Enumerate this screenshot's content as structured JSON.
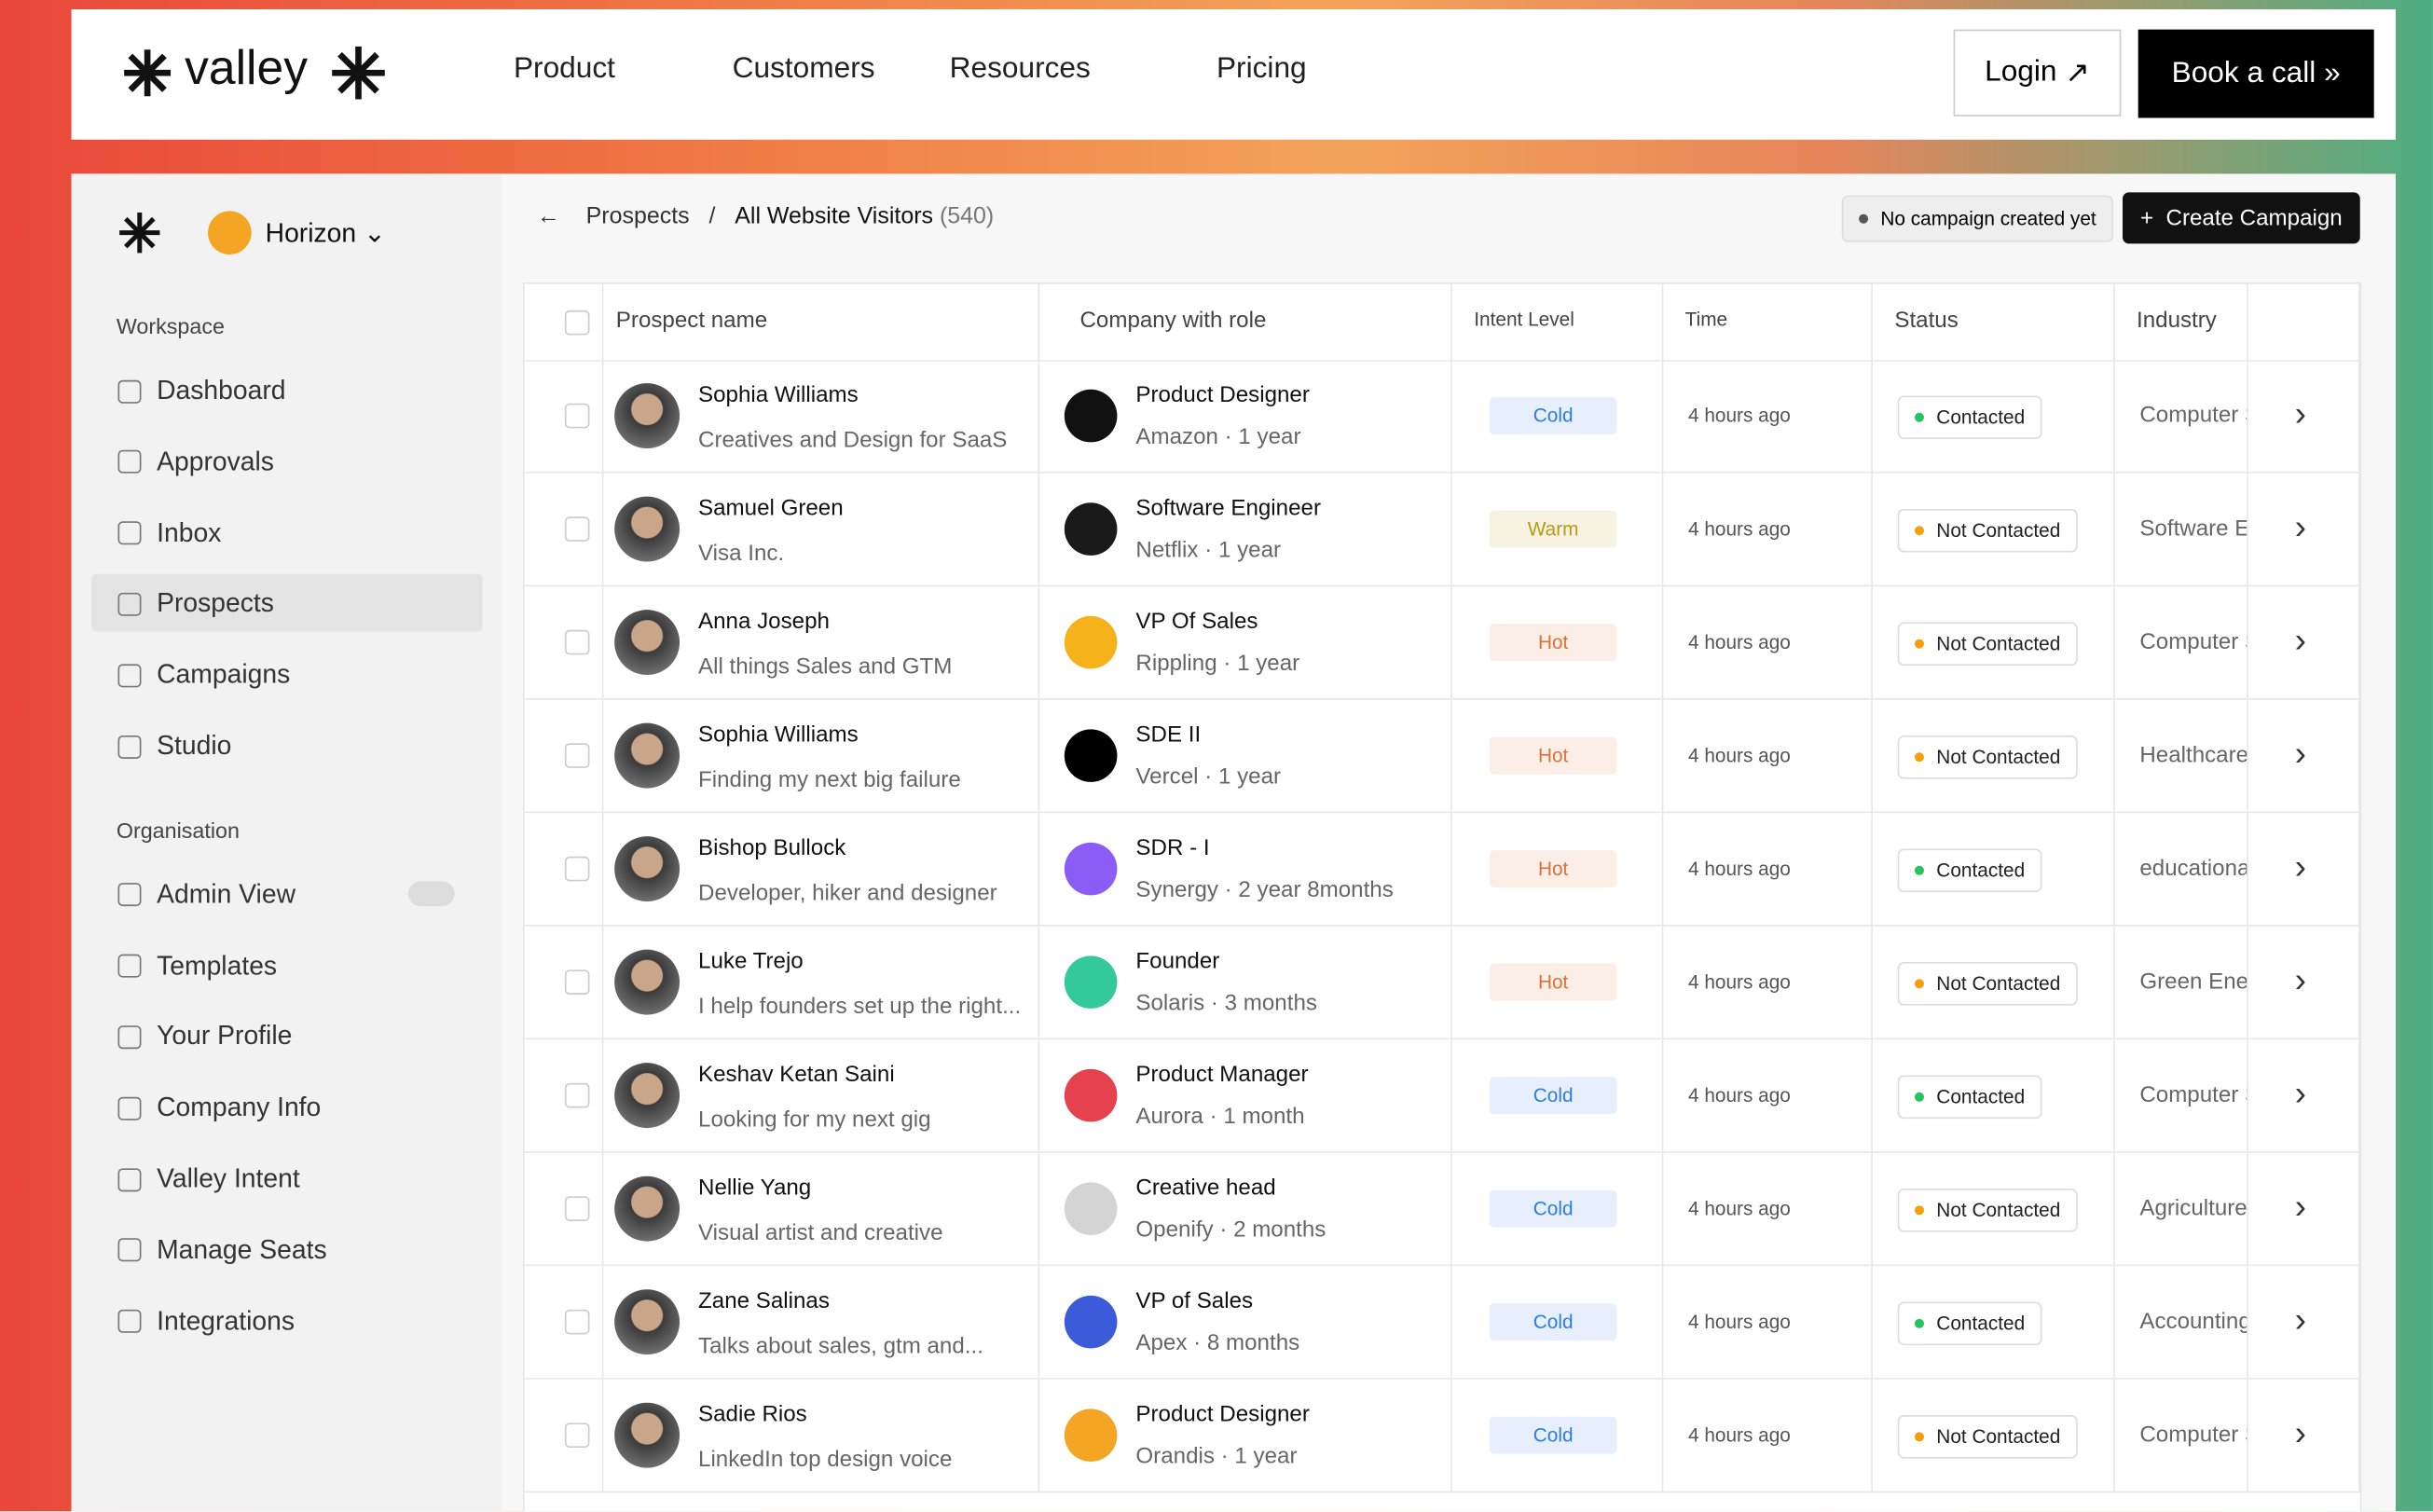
{
  "nav": {
    "logo": "valley",
    "links": [
      "Product",
      "Customers",
      "Resources",
      "Pricing"
    ],
    "login": "Login",
    "cta": "Book a call"
  },
  "sidebar": {
    "workspace": "Horizon",
    "sections": [
      {
        "title": "Workspace",
        "items": [
          "Dashboard",
          "Approvals",
          "Inbox",
          "Prospects",
          "Campaigns",
          "Studio"
        ]
      },
      {
        "title": "Organisation",
        "items": [
          "Admin View",
          "Templates",
          "Your Profile",
          "Company Info",
          "Valley Intent",
          "Manage Seats",
          "Integrations"
        ]
      }
    ]
  },
  "header": {
    "crumb": "Prospects",
    "page": "All Website Visitors",
    "count": "(540)",
    "notice": "No campaign created yet",
    "button": "Create Campaign"
  },
  "table": {
    "columns": [
      "Prospect name",
      "Company with role",
      "Intent Level",
      "Time",
      "Status",
      "Industry"
    ],
    "rows": [
      {
        "name": "Sophia Williams",
        "headline": "Creatives and Design for SaaS",
        "role": "Product Designer",
        "company": "Amazon",
        "tenure": "1 year",
        "intent": "Cold",
        "intent_color": "#2f7de1",
        "time": "4 hours ago",
        "status": "Contacted",
        "status_color": "#22c55e",
        "industry": "Computer Software",
        "logo_color": "#111111"
      },
      {
        "name": "Samuel Green",
        "headline": "Visa Inc.",
        "role": "Software Engineer",
        "company": "Netflix",
        "tenure": "1 year",
        "intent": "Warm",
        "intent_color": "#b99a12",
        "time": "4 hours ago",
        "status": "Not Contacted",
        "status_color": "#f59e0b",
        "industry": "Software Engineering",
        "logo_color": "#1a1a1a"
      },
      {
        "name": "Anna Joseph",
        "headline": "All things Sales and GTM",
        "role": "VP Of Sales",
        "company": "Rippling",
        "tenure": "1 year",
        "intent": "Hot",
        "intent_color": "#d9733a",
        "time": "4 hours ago",
        "status": "Not Contacted",
        "status_color": "#f59e0b",
        "industry": "Computer Software",
        "logo_color": "#f6b21a"
      },
      {
        "name": "Sophia Williams",
        "headline": "Finding my next big failure",
        "role": "SDE II",
        "company": "Vercel",
        "tenure": "1 year",
        "intent": "Hot",
        "intent_color": "#d9733a",
        "time": "4 hours ago",
        "status": "Not Contacted",
        "status_color": "#f59e0b",
        "industry": "Healthcare",
        "logo_color": "#000000"
      },
      {
        "name": "Bishop Bullock",
        "headline": "Developer, hiker and designer",
        "role": "SDR - I",
        "company": "Synergy",
        "tenure": "2 year 8months",
        "intent": "Hot",
        "intent_color": "#d9733a",
        "time": "4 hours ago",
        "status": "Contacted",
        "status_color": "#22c55e",
        "industry": "educational",
        "logo_color": "#8b5cf6"
      },
      {
        "name": "Luke Trejo",
        "headline": "I help founders set up the right...",
        "role": "Founder",
        "company": "Solaris",
        "tenure": "3 months",
        "intent": "Hot",
        "intent_color": "#d9733a",
        "time": "4 hours ago",
        "status": "Not Contacted",
        "status_color": "#f59e0b",
        "industry": "Green Energy",
        "logo_color": "#34c99a"
      },
      {
        "name": "Keshav Ketan Saini",
        "headline": "Looking for my next gig",
        "role": "Product Manager",
        "company": "Aurora",
        "tenure": "1 month",
        "intent": "Cold",
        "intent_color": "#2f7de1",
        "time": "4 hours ago",
        "status": "Contacted",
        "status_color": "#22c55e",
        "industry": "Computer Software",
        "logo_color": "#e5414f"
      },
      {
        "name": "Nellie Yang",
        "headline": "Visual artist and creative",
        "role": "Creative head",
        "company": "Openify",
        "tenure": "2 months",
        "intent": "Cold",
        "intent_color": "#2f7de1",
        "time": "4 hours ago",
        "status": "Not Contacted",
        "status_color": "#f59e0b",
        "industry": "Agriculture",
        "logo_color": "#d4d4d4"
      },
      {
        "name": "Zane Salinas",
        "headline": "Talks about sales, gtm and...",
        "role": "VP of Sales",
        "company": "Apex",
        "tenure": "8 months",
        "intent": "Cold",
        "intent_color": "#2f7de1",
        "time": "4 hours ago",
        "status": "Contacted",
        "status_color": "#22c55e",
        "industry": "Accounting",
        "logo_color": "#3b5bdb"
      },
      {
        "name": "Sadie Rios",
        "headline": "LinkedIn top design voice",
        "role": "Product Designer",
        "company": "Orandis",
        "tenure": "1 year",
        "intent": "Cold",
        "intent_color": "#2f7de1",
        "time": "4 hours ago",
        "status": "Not Contacted",
        "status_color": "#f59e0b",
        "industry": "Computer Software",
        "logo_color": "#f5a524"
      }
    ]
  }
}
